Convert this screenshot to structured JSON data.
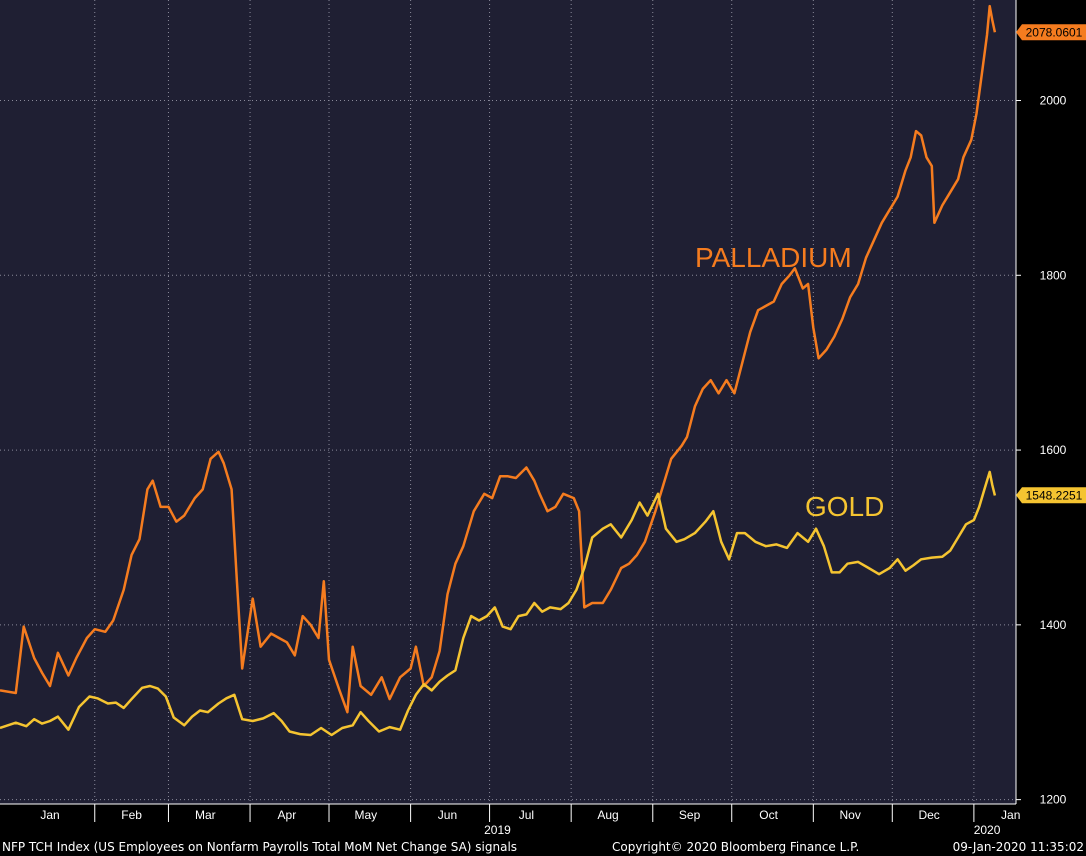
{
  "chart_data": {
    "type": "line",
    "ylim": [
      1195,
      2115
    ],
    "xlim": [
      "2018-12-27",
      "2020-01-17"
    ],
    "y_ticks": [
      1200,
      1400,
      1600,
      1800,
      2000
    ],
    "x_ticks": [
      {
        "label": "Jan",
        "date": "2019-01-15"
      },
      {
        "label": "Feb",
        "date": "2019-02-15"
      },
      {
        "label": "Mar",
        "date": "2019-03-15"
      },
      {
        "label": "Apr",
        "date": "2019-04-15"
      },
      {
        "label": "May",
        "date": "2019-05-15"
      },
      {
        "label": "Jun",
        "date": "2019-06-15"
      },
      {
        "label": "Jul",
        "date": "2019-07-15"
      },
      {
        "label": "Aug",
        "date": "2019-08-15"
      },
      {
        "label": "Sep",
        "date": "2019-09-15"
      },
      {
        "label": "Oct",
        "date": "2019-10-15"
      },
      {
        "label": "Nov",
        "date": "2019-11-15"
      },
      {
        "label": "Dec",
        "date": "2019-12-15"
      },
      {
        "label": "Jan",
        "date": "2020-01-15"
      }
    ],
    "x_year_labels": [
      {
        "label": "2019",
        "date": "2019-07-04"
      },
      {
        "label": "2020",
        "date": "2020-01-06"
      }
    ],
    "grid": true,
    "series": [
      {
        "name": "PALLADIUM",
        "color": "#f57c1f",
        "last_value": "2078.0601",
        "points": [
          [
            "2018-12-27",
            1325
          ],
          [
            "2019-01-02",
            1322
          ],
          [
            "2019-01-05",
            1398
          ],
          [
            "2019-01-09",
            1362
          ],
          [
            "2019-01-12",
            1345
          ],
          [
            "2019-01-15",
            1330
          ],
          [
            "2019-01-18",
            1368
          ],
          [
            "2019-01-22",
            1342
          ],
          [
            "2019-01-25",
            1362
          ],
          [
            "2019-01-29",
            1385
          ],
          [
            "2019-02-01",
            1395
          ],
          [
            "2019-02-05",
            1392
          ],
          [
            "2019-02-08",
            1405
          ],
          [
            "2019-02-12",
            1440
          ],
          [
            "2019-02-15",
            1480
          ],
          [
            "2019-02-18",
            1498
          ],
          [
            "2019-02-21",
            1555
          ],
          [
            "2019-02-23",
            1565
          ],
          [
            "2019-02-26",
            1535
          ],
          [
            "2019-03-01",
            1535
          ],
          [
            "2019-03-04",
            1518
          ],
          [
            "2019-03-07",
            1525
          ],
          [
            "2019-03-11",
            1545
          ],
          [
            "2019-03-14",
            1555
          ],
          [
            "2019-03-17",
            1590
          ],
          [
            "2019-03-20",
            1598
          ],
          [
            "2019-03-22",
            1585
          ],
          [
            "2019-03-25",
            1555
          ],
          [
            "2019-03-27",
            1450
          ],
          [
            "2019-03-29",
            1350
          ],
          [
            "2019-04-02",
            1430
          ],
          [
            "2019-04-05",
            1375
          ],
          [
            "2019-04-09",
            1390
          ],
          [
            "2019-04-12",
            1385
          ],
          [
            "2019-04-15",
            1380
          ],
          [
            "2019-04-18",
            1365
          ],
          [
            "2019-04-21",
            1410
          ],
          [
            "2019-04-24",
            1400
          ],
          [
            "2019-04-27",
            1385
          ],
          [
            "2019-04-29",
            1450
          ],
          [
            "2019-05-01",
            1360
          ],
          [
            "2019-05-05",
            1325
          ],
          [
            "2019-05-08",
            1300
          ],
          [
            "2019-05-10",
            1375
          ],
          [
            "2019-05-13",
            1330
          ],
          [
            "2019-05-17",
            1320
          ],
          [
            "2019-05-21",
            1340
          ],
          [
            "2019-05-24",
            1315
          ],
          [
            "2019-05-28",
            1340
          ],
          [
            "2019-06-01",
            1350
          ],
          [
            "2019-06-03",
            1375
          ],
          [
            "2019-06-06",
            1330
          ],
          [
            "2019-06-09",
            1340
          ],
          [
            "2019-06-12",
            1370
          ],
          [
            "2019-06-15",
            1435
          ],
          [
            "2019-06-18",
            1470
          ],
          [
            "2019-06-21",
            1490
          ],
          [
            "2019-06-25",
            1530
          ],
          [
            "2019-06-29",
            1550
          ],
          [
            "2019-07-02",
            1545
          ],
          [
            "2019-07-05",
            1570
          ],
          [
            "2019-07-08",
            1570
          ],
          [
            "2019-07-11",
            1568
          ],
          [
            "2019-07-15",
            1580
          ],
          [
            "2019-07-18",
            1565
          ],
          [
            "2019-07-20",
            1550
          ],
          [
            "2019-07-23",
            1530
          ],
          [
            "2019-07-26",
            1535
          ],
          [
            "2019-07-29",
            1550
          ],
          [
            "2019-08-02",
            1545
          ],
          [
            "2019-08-04",
            1530
          ],
          [
            "2019-08-06",
            1420
          ],
          [
            "2019-08-09",
            1425
          ],
          [
            "2019-08-13",
            1425
          ],
          [
            "2019-08-16",
            1440
          ],
          [
            "2019-08-20",
            1465
          ],
          [
            "2019-08-23",
            1470
          ],
          [
            "2019-08-26",
            1480
          ],
          [
            "2019-08-29",
            1495
          ],
          [
            "2019-09-02",
            1530
          ],
          [
            "2019-09-05",
            1560
          ],
          [
            "2019-09-08",
            1590
          ],
          [
            "2019-09-12",
            1605
          ],
          [
            "2019-09-14",
            1615
          ],
          [
            "2019-09-17",
            1650
          ],
          [
            "2019-09-20",
            1670
          ],
          [
            "2019-09-23",
            1680
          ],
          [
            "2019-09-26",
            1665
          ],
          [
            "2019-09-29",
            1680
          ],
          [
            "2019-10-02",
            1665
          ],
          [
            "2019-10-05",
            1700
          ],
          [
            "2019-10-08",
            1735
          ],
          [
            "2019-10-11",
            1760
          ],
          [
            "2019-10-14",
            1765
          ],
          [
            "2019-10-17",
            1770
          ],
          [
            "2019-10-20",
            1790
          ],
          [
            "2019-10-23",
            1800
          ],
          [
            "2019-10-25",
            1808
          ],
          [
            "2019-10-28",
            1785
          ],
          [
            "2019-10-30",
            1790
          ],
          [
            "2019-11-01",
            1740
          ],
          [
            "2019-11-03",
            1705
          ],
          [
            "2019-11-06",
            1715
          ],
          [
            "2019-11-09",
            1730
          ],
          [
            "2019-11-12",
            1750
          ],
          [
            "2019-11-15",
            1775
          ],
          [
            "2019-11-18",
            1790
          ],
          [
            "2019-11-21",
            1820
          ],
          [
            "2019-11-24",
            1840
          ],
          [
            "2019-11-27",
            1860
          ],
          [
            "2019-11-30",
            1875
          ],
          [
            "2019-12-03",
            1890
          ],
          [
            "2019-12-06",
            1920
          ],
          [
            "2019-12-08",
            1935
          ],
          [
            "2019-12-10",
            1965
          ],
          [
            "2019-12-12",
            1960
          ],
          [
            "2019-12-14",
            1935
          ],
          [
            "2019-12-16",
            1925
          ],
          [
            "2019-12-17",
            1860
          ],
          [
            "2019-12-20",
            1880
          ],
          [
            "2019-12-23",
            1895
          ],
          [
            "2019-12-26",
            1910
          ],
          [
            "2019-12-28",
            1935
          ],
          [
            "2019-12-31",
            1955
          ],
          [
            "2020-01-02",
            1985
          ],
          [
            "2020-01-04",
            2030
          ],
          [
            "2020-01-06",
            2075
          ],
          [
            "2020-01-07",
            2108
          ],
          [
            "2020-01-08",
            2092
          ],
          [
            "2020-01-09",
            2078
          ]
        ]
      },
      {
        "name": "GOLD",
        "color": "#f5c431",
        "last_value": "1548.2251",
        "points": [
          [
            "2018-12-27",
            1282
          ],
          [
            "2019-01-02",
            1288
          ],
          [
            "2019-01-06",
            1284
          ],
          [
            "2019-01-09",
            1292
          ],
          [
            "2019-01-12",
            1287
          ],
          [
            "2019-01-15",
            1290
          ],
          [
            "2019-01-18",
            1295
          ],
          [
            "2019-01-22",
            1280
          ],
          [
            "2019-01-26",
            1306
          ],
          [
            "2019-01-30",
            1318
          ],
          [
            "2019-02-02",
            1316
          ],
          [
            "2019-02-06",
            1310
          ],
          [
            "2019-02-09",
            1311
          ],
          [
            "2019-02-12",
            1305
          ],
          [
            "2019-02-15",
            1315
          ],
          [
            "2019-02-19",
            1328
          ],
          [
            "2019-02-22",
            1330
          ],
          [
            "2019-02-25",
            1327
          ],
          [
            "2019-02-28",
            1318
          ],
          [
            "2019-03-03",
            1294
          ],
          [
            "2019-03-07",
            1285
          ],
          [
            "2019-03-10",
            1295
          ],
          [
            "2019-03-13",
            1302
          ],
          [
            "2019-03-16",
            1300
          ],
          [
            "2019-03-20",
            1310
          ],
          [
            "2019-03-23",
            1316
          ],
          [
            "2019-03-26",
            1320
          ],
          [
            "2019-03-29",
            1292
          ],
          [
            "2019-04-02",
            1290
          ],
          [
            "2019-04-06",
            1293
          ],
          [
            "2019-04-10",
            1299
          ],
          [
            "2019-04-13",
            1290
          ],
          [
            "2019-04-16",
            1278
          ],
          [
            "2019-04-20",
            1275
          ],
          [
            "2019-04-24",
            1274
          ],
          [
            "2019-04-28",
            1282
          ],
          [
            "2019-05-02",
            1274
          ],
          [
            "2019-05-06",
            1282
          ],
          [
            "2019-05-10",
            1285
          ],
          [
            "2019-05-13",
            1300
          ],
          [
            "2019-05-16",
            1290
          ],
          [
            "2019-05-20",
            1278
          ],
          [
            "2019-05-24",
            1283
          ],
          [
            "2019-05-28",
            1280
          ],
          [
            "2019-05-31",
            1302
          ],
          [
            "2019-06-03",
            1320
          ],
          [
            "2019-06-06",
            1332
          ],
          [
            "2019-06-09",
            1325
          ],
          [
            "2019-06-12",
            1335
          ],
          [
            "2019-06-15",
            1342
          ],
          [
            "2019-06-18",
            1348
          ],
          [
            "2019-06-21",
            1385
          ],
          [
            "2019-06-24",
            1410
          ],
          [
            "2019-06-27",
            1405
          ],
          [
            "2019-06-30",
            1410
          ],
          [
            "2019-07-03",
            1420
          ],
          [
            "2019-07-06",
            1398
          ],
          [
            "2019-07-09",
            1395
          ],
          [
            "2019-07-12",
            1410
          ],
          [
            "2019-07-15",
            1412
          ],
          [
            "2019-07-18",
            1425
          ],
          [
            "2019-07-21",
            1415
          ],
          [
            "2019-07-24",
            1420
          ],
          [
            "2019-07-28",
            1418
          ],
          [
            "2019-07-31",
            1425
          ],
          [
            "2019-08-03",
            1440
          ],
          [
            "2019-08-06",
            1465
          ],
          [
            "2019-08-09",
            1500
          ],
          [
            "2019-08-13",
            1510
          ],
          [
            "2019-08-16",
            1515
          ],
          [
            "2019-08-20",
            1500
          ],
          [
            "2019-08-24",
            1520
          ],
          [
            "2019-08-27",
            1540
          ],
          [
            "2019-08-30",
            1525
          ],
          [
            "2019-09-03",
            1550
          ],
          [
            "2019-09-06",
            1510
          ],
          [
            "2019-09-10",
            1495
          ],
          [
            "2019-09-13",
            1498
          ],
          [
            "2019-09-17",
            1505
          ],
          [
            "2019-09-21",
            1518
          ],
          [
            "2019-09-24",
            1530
          ],
          [
            "2019-09-27",
            1495
          ],
          [
            "2019-09-30",
            1475
          ],
          [
            "2019-10-03",
            1505
          ],
          [
            "2019-10-06",
            1505
          ],
          [
            "2019-10-10",
            1495
          ],
          [
            "2019-10-14",
            1490
          ],
          [
            "2019-10-18",
            1492
          ],
          [
            "2019-10-22",
            1488
          ],
          [
            "2019-10-26",
            1505
          ],
          [
            "2019-10-30",
            1495
          ],
          [
            "2019-11-02",
            1510
          ],
          [
            "2019-11-05",
            1490
          ],
          [
            "2019-11-08",
            1460
          ],
          [
            "2019-11-11",
            1460
          ],
          [
            "2019-11-14",
            1470
          ],
          [
            "2019-11-18",
            1472
          ],
          [
            "2019-11-22",
            1465
          ],
          [
            "2019-11-26",
            1458
          ],
          [
            "2019-11-30",
            1465
          ],
          [
            "2019-12-03",
            1475
          ],
          [
            "2019-12-06",
            1462
          ],
          [
            "2019-12-09",
            1468
          ],
          [
            "2019-12-12",
            1475
          ],
          [
            "2019-12-16",
            1477
          ],
          [
            "2019-12-20",
            1478
          ],
          [
            "2019-12-23",
            1485
          ],
          [
            "2019-12-26",
            1500
          ],
          [
            "2019-12-29",
            1515
          ],
          [
            "2020-01-01",
            1520
          ],
          [
            "2020-01-03",
            1535
          ],
          [
            "2020-01-05",
            1555
          ],
          [
            "2020-01-07",
            1575
          ],
          [
            "2020-01-08",
            1560
          ],
          [
            "2020-01-09",
            1548
          ]
        ]
      }
    ]
  },
  "labels": {
    "palladium": "PALLADIUM",
    "gold": "GOLD"
  },
  "footer": {
    "left": "NFP TCH Index (US Employees on Nonfarm Payrolls Total MoM Net Change SA) signals",
    "center": "Copyright© 2020 Bloomberg Finance L.P.",
    "right": "09-Jan-2020 11:35:02"
  },
  "colors": {
    "plot_bg": "#1f1f33",
    "grid": "#8a8a9a",
    "palladium": "#f57c1f",
    "gold": "#f5c431"
  }
}
